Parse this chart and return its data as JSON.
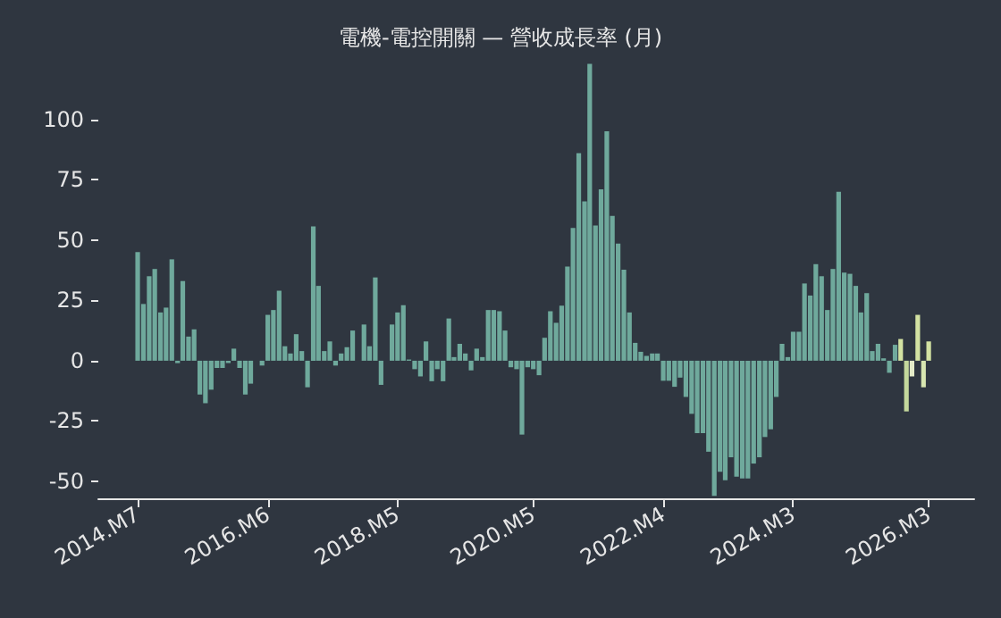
{
  "chart_data": {
    "type": "bar",
    "title": "電機-電控開關 — 營收成長率 (月)",
    "x": [
      "2014-07",
      "2014-08",
      "2014-09",
      "2014-10",
      "2014-11",
      "2014-12",
      "2015-01",
      "2015-02",
      "2015-03",
      "2015-04",
      "2015-05",
      "2015-06",
      "2015-07",
      "2015-08",
      "2015-09",
      "2015-10",
      "2015-11",
      "2015-12",
      "2016-01",
      "2016-02",
      "2016-03",
      "2016-04",
      "2016-05",
      "2016-06",
      "2016-07",
      "2016-08",
      "2016-09",
      "2016-10",
      "2016-11",
      "2016-12",
      "2017-01",
      "2017-02",
      "2017-03",
      "2017-04",
      "2017-05",
      "2017-06",
      "2017-07",
      "2017-08",
      "2017-09",
      "2017-10",
      "2017-11",
      "2017-12",
      "2018-01",
      "2018-02",
      "2018-03",
      "2018-04",
      "2018-05",
      "2018-06",
      "2018-07",
      "2018-08",
      "2018-09",
      "2018-10",
      "2018-11",
      "2018-12",
      "2019-01",
      "2019-02",
      "2019-03",
      "2019-04",
      "2019-05",
      "2019-06",
      "2019-07",
      "2019-08",
      "2019-09",
      "2019-10",
      "2019-11",
      "2019-12",
      "2020-01",
      "2020-02",
      "2020-03",
      "2020-04",
      "2020-05",
      "2020-06",
      "2020-07",
      "2020-08",
      "2020-09",
      "2020-10",
      "2020-11",
      "2020-12",
      "2021-01",
      "2021-02",
      "2021-03",
      "2021-04",
      "2021-05",
      "2021-06",
      "2021-07",
      "2021-08",
      "2021-09",
      "2021-10",
      "2021-11",
      "2021-12",
      "2022-01",
      "2022-02",
      "2022-03",
      "2022-04",
      "2022-05",
      "2022-06",
      "2022-07",
      "2022-08",
      "2022-09",
      "2022-10",
      "2022-11",
      "2022-12",
      "2023-01",
      "2023-02",
      "2023-03",
      "2023-04",
      "2023-05",
      "2023-06",
      "2023-07",
      "2023-08",
      "2023-09",
      "2023-10",
      "2023-11",
      "2023-12",
      "2024-01",
      "2024-02",
      "2024-03",
      "2024-04",
      "2024-05",
      "2024-06",
      "2024-07",
      "2024-08",
      "2024-09",
      "2024-10",
      "2024-11",
      "2024-12",
      "2025-01",
      "2025-02",
      "2025-03",
      "2025-04",
      "2025-05",
      "2025-06",
      "2025-07",
      "2025-08",
      "2025-09",
      "2025-10",
      "2025-11",
      "2025-12",
      "2026-01",
      "2026-02",
      "2026-03"
    ],
    "values": [
      45,
      23.5,
      35,
      38,
      20,
      22,
      42,
      -1,
      33,
      10,
      13,
      -14,
      -17.6,
      -12,
      -3,
      -3,
      -1,
      5,
      -3,
      -14,
      -9.5,
      0,
      -2,
      19,
      21,
      29,
      6,
      3,
      11,
      4,
      -11,
      55.6,
      31,
      4,
      8,
      -2,
      3,
      5.6,
      12.5,
      0,
      15,
      6,
      34.5,
      -10,
      0,
      15,
      20,
      23,
      0.5,
      -3.5,
      -6.5,
      8,
      -8.5,
      -3.5,
      -8.5,
      17.5,
      1.5,
      7,
      3,
      -4,
      5,
      1.5,
      21,
      21,
      20.5,
      12.5,
      -2.7,
      -3.5,
      -30.6,
      -2.7,
      -3.5,
      -6,
      9.5,
      20.5,
      15.7,
      22.8,
      39,
      55,
      86,
      66,
      123,
      56,
      71,
      95,
      60,
      48.5,
      37.7,
      20,
      7.4,
      3.7,
      2,
      3,
      3,
      -8.3,
      -8.3,
      -10.8,
      -7,
      -15,
      -22,
      -30,
      -30,
      -37.7,
      -56,
      -46,
      -49.5,
      -40,
      -48,
      -48.8,
      -48.8,
      -42.6,
      -40,
      -31.6,
      -28.4,
      -15,
      7,
      1.5,
      12,
      12,
      32,
      27,
      40,
      35,
      21,
      38,
      70,
      36.5,
      36,
      31,
      20,
      28,
      4,
      7,
      1,
      -5,
      6.6,
      9,
      -21,
      -6.5,
      19,
      -11,
      8
    ],
    "colors": [
      "#6fa99c",
      "#6fa99c",
      "#6fa99c",
      "#6fa99c",
      "#6fa99c",
      "#6fa99c",
      "#6fa99c",
      "#6fa99c",
      "#6fa99c",
      "#6fa99c",
      "#6fa99c",
      "#6fa99c",
      "#6fa99c",
      "#6fa99c",
      "#6fa99c",
      "#6fa99c",
      "#6fa99c",
      "#6fa99c",
      "#6fa99c",
      "#6fa99c",
      "#6fa99c",
      "#6fa99c",
      "#6fa99c",
      "#6fa99c",
      "#6fa99c",
      "#6fa99c",
      "#6fa99c",
      "#6fa99c",
      "#6fa99c",
      "#6fa99c",
      "#6fa99c",
      "#6fa99c",
      "#6fa99c",
      "#6fa99c",
      "#6fa99c",
      "#6fa99c",
      "#6fa99c",
      "#6fa99c",
      "#6fa99c",
      "#6fa99c",
      "#6fa99c",
      "#6fa99c",
      "#6fa99c",
      "#6fa99c",
      "#6fa99c",
      "#6fa99c",
      "#6fa99c",
      "#6fa99c",
      "#6fa99c",
      "#6fa99c",
      "#6fa99c",
      "#6fa99c",
      "#6fa99c",
      "#6fa99c",
      "#6fa99c",
      "#6fa99c",
      "#6fa99c",
      "#6fa99c",
      "#6fa99c",
      "#6fa99c",
      "#6fa99c",
      "#6fa99c",
      "#6fa99c",
      "#6fa99c",
      "#6fa99c",
      "#6fa99c",
      "#6fa99c",
      "#6fa99c",
      "#6fa99c",
      "#6fa99c",
      "#6fa99c",
      "#6fa99c",
      "#6fa99c",
      "#6fa99c",
      "#6fa99c",
      "#6fa99c",
      "#6fa99c",
      "#6fa99c",
      "#6fa99c",
      "#6fa99c",
      "#6fa99c",
      "#6fa99c",
      "#6fa99c",
      "#6fa99c",
      "#6fa99c",
      "#6fa99c",
      "#6fa99c",
      "#6fa99c",
      "#6fa99c",
      "#6fa99c",
      "#6fa99c",
      "#6fa99c",
      "#6fa99c",
      "#6fa99c",
      "#6fa99c",
      "#6fa99c",
      "#6fa99c",
      "#6fa99c",
      "#6fa99c",
      "#6fa99c",
      "#6fa99c",
      "#6fa99c",
      "#6fa99c",
      "#6fa99c",
      "#6fa99c",
      "#6fa99c",
      "#6fa99c",
      "#6fa99c",
      "#6fa99c",
      "#6fa99c",
      "#6fa99c",
      "#6fa99c",
      "#6fa99c",
      "#6fa99c",
      "#6fa99c",
      "#6fa99c",
      "#6fa99c",
      "#6fa99c",
      "#6fa99c",
      "#6fa99c",
      "#6fa99c",
      "#6fa99c",
      "#6fa99c",
      "#6fa99c",
      "#6fa99c",
      "#6fa99c",
      "#6fa99c",
      "#6fa99c",
      "#6fa99c",
      "#6fa99c",
      "#6fa99c",
      "#6fa99c",
      "#6fa99c",
      "#6fa99c",
      "#6fa99c",
      "#d3e2a2",
      "#c4d89c",
      "#e4ebc8",
      "#d3e2a2",
      "#d8e6b0",
      "#d3e2a2"
    ],
    "xlim": [
      "2013-12",
      "2026-11"
    ],
    "xticks": [
      {
        "value": "2014-07",
        "label": "2014.M7"
      },
      {
        "value": "2016-06",
        "label": "2016.M6"
      },
      {
        "value": "2018-05",
        "label": "2018.M5"
      },
      {
        "value": "2020-05",
        "label": "2020.M5"
      },
      {
        "value": "2022-04",
        "label": "2022.M4"
      },
      {
        "value": "2024-03",
        "label": "2024.M3"
      },
      {
        "value": "2026-03",
        "label": "2026.M3"
      }
    ],
    "ylim": [
      -57,
      125
    ],
    "yticks": [
      -50,
      -25,
      0,
      25,
      50,
      75,
      100
    ],
    "grid": false
  }
}
